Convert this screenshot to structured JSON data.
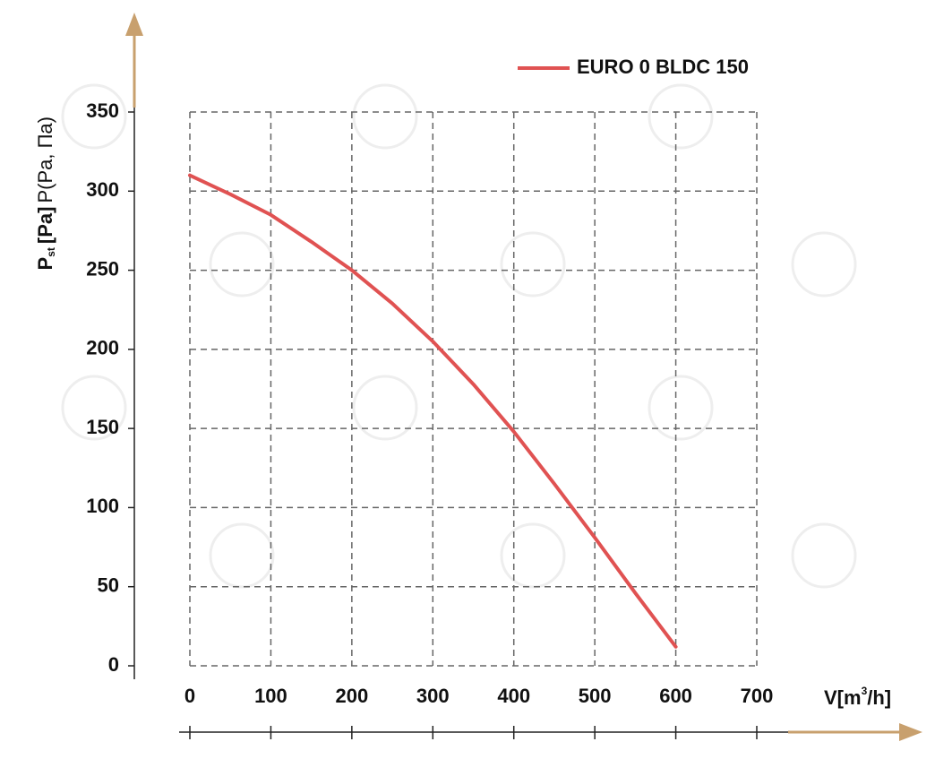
{
  "chart_data": {
    "type": "line",
    "ylabel": {
      "main": "P",
      "sub": "st",
      "unit": "[Pa]",
      "alt": "P(Pa, Па)"
    },
    "xlabel": {
      "main": "V[m",
      "sup": "3",
      "end": "/h]"
    },
    "x": [
      0,
      50,
      100,
      150,
      200,
      250,
      300,
      350,
      400,
      450,
      500,
      550,
      600
    ],
    "series": [
      {
        "name": "EURO 0 BLDC 150",
        "color": "#e05252",
        "values": [
          310,
          298,
          285,
          268,
          250,
          229,
          205,
          178,
          148,
          115,
          81,
          46,
          12
        ]
      }
    ],
    "xlim": [
      0,
      700
    ],
    "xticks": [
      0,
      100,
      200,
      300,
      400,
      500,
      600,
      700
    ],
    "ylim": [
      0,
      350
    ],
    "yticks": [
      0,
      50,
      100,
      150,
      200,
      250,
      300,
      350
    ],
    "grid": true,
    "legend": "top-right"
  }
}
